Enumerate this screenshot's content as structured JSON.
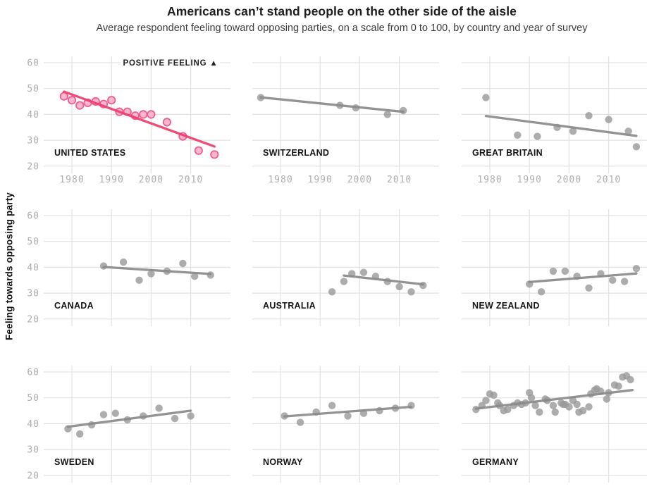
{
  "header": {
    "title": "Americans can’t stand people on the other side of the aisle",
    "subtitle": "Average respondent feeling toward opposing parties, on a scale from 0 to 100, by country and year of survey"
  },
  "y_axis_label": "Feeling towards opposing party",
  "annotation": {
    "text": "POSITIVE FEELING",
    "symbol": "▲"
  },
  "colors": {
    "highlight_line": "#ee3d6d",
    "highlight_dot_fill": "#f9b6ce",
    "highlight_dot_stroke": "#ee5d90",
    "gray_line": "#8a8a8a",
    "gray_dot": "#999999",
    "gridline": "#e2e2e2",
    "tick_label": "#aeaeae",
    "country_label": "#151515",
    "annotation_color": "#222222"
  },
  "chart_data": {
    "type": "scatter",
    "title": "Americans can’t stand people on the other side of the aisle",
    "subtitle": "Average respondent feeling toward opposing parties, on a scale from 0 to 100, by country and year of survey",
    "ylabel": "Feeling towards opposing party",
    "axes": {
      "y_ticks": [
        60,
        50,
        40,
        30,
        20
      ],
      "x_ticks": [
        1980,
        1990,
        2000,
        2010
      ],
      "ylim_shown": [
        20,
        60
      ],
      "xlim_shown": [
        1973,
        2020
      ],
      "grid": true,
      "x_tick_labels_only_on_top_row": true,
      "y_tick_labels_only_on_left_column": true
    },
    "panels": [
      {
        "id": "united-states",
        "label": "UNITED STATES",
        "highlighted": true,
        "points": [
          [
            1978,
            47
          ],
          [
            1980,
            45.5
          ],
          [
            1982,
            43.5
          ],
          [
            1984,
            44.5
          ],
          [
            1986,
            45
          ],
          [
            1988,
            44
          ],
          [
            1990,
            45.5
          ],
          [
            1992,
            41
          ],
          [
            1994,
            41
          ],
          [
            1996,
            39.5
          ],
          [
            1998,
            40
          ],
          [
            2000,
            40
          ],
          [
            2004,
            37
          ],
          [
            2008,
            31.5
          ],
          [
            2012,
            26
          ],
          [
            2016,
            24.5
          ]
        ],
        "trend": [
          [
            1978,
            48.8
          ],
          [
            2016,
            27.6
          ]
        ]
      },
      {
        "id": "switzerland",
        "label": "SWITZERLAND",
        "highlighted": false,
        "points": [
          [
            1975,
            46.5
          ],
          [
            1995,
            43.5
          ],
          [
            1999,
            42.5
          ],
          [
            2007,
            40
          ],
          [
            2011,
            41.5
          ]
        ],
        "trend": [
          [
            1975,
            46.6
          ],
          [
            2011,
            41
          ]
        ]
      },
      {
        "id": "great-britain",
        "label": "GREAT BRITAIN",
        "highlighted": false,
        "points": [
          [
            1979,
            46.5
          ],
          [
            1987,
            32
          ],
          [
            1992,
            31.5
          ],
          [
            1997,
            35
          ],
          [
            2001,
            33.5
          ],
          [
            2005,
            39.5
          ],
          [
            2010,
            38
          ],
          [
            2015,
            33.5
          ],
          [
            2017,
            27.5
          ]
        ],
        "trend": [
          [
            1979,
            39.4
          ],
          [
            2017,
            31.7
          ]
        ]
      },
      {
        "id": "canada",
        "label": "CANADA",
        "highlighted": false,
        "points": [
          [
            1988,
            40.5
          ],
          [
            1993,
            42
          ],
          [
            1997,
            35
          ],
          [
            2000,
            37.5
          ],
          [
            2004,
            38.5
          ],
          [
            2008,
            41.5
          ],
          [
            2011,
            36.5
          ],
          [
            2015,
            37
          ]
        ],
        "trend": [
          [
            1988,
            40.1
          ],
          [
            2015,
            37.4
          ]
        ]
      },
      {
        "id": "australia",
        "label": "AUSTRALIA",
        "highlighted": false,
        "points": [
          [
            1993,
            30.5
          ],
          [
            1996,
            34.5
          ],
          [
            1998,
            37.5
          ],
          [
            2001,
            38
          ],
          [
            2004,
            36.5
          ],
          [
            2007,
            34.5
          ],
          [
            2010,
            32.5
          ],
          [
            2013,
            30.5
          ],
          [
            2016,
            33
          ]
        ],
        "trend": [
          [
            1996,
            36.8
          ],
          [
            2016,
            33.4
          ]
        ]
      },
      {
        "id": "new-zealand",
        "label": "NEW ZEALAND",
        "highlighted": false,
        "points": [
          [
            1990,
            33.5
          ],
          [
            1993,
            30.5
          ],
          [
            1996,
            38.5
          ],
          [
            1999,
            38.5
          ],
          [
            2002,
            36.5
          ],
          [
            2005,
            32
          ],
          [
            2008,
            37.5
          ],
          [
            2011,
            35
          ],
          [
            2014,
            34.5
          ],
          [
            2017,
            39.5
          ]
        ],
        "trend": [
          [
            1990,
            34.3
          ],
          [
            2017,
            37.6
          ]
        ]
      },
      {
        "id": "sweden",
        "label": "SWEDEN",
        "highlighted": false,
        "points": [
          [
            1979,
            38
          ],
          [
            1982,
            36
          ],
          [
            1985,
            39.5
          ],
          [
            1988,
            43.5
          ],
          [
            1991,
            44
          ],
          [
            1994,
            41.5
          ],
          [
            1998,
            43
          ],
          [
            2002,
            46
          ],
          [
            2006,
            42
          ],
          [
            2010,
            43
          ]
        ],
        "trend": [
          [
            1979,
            38.8
          ],
          [
            2010,
            45
          ]
        ]
      },
      {
        "id": "norway",
        "label": "NORWAY",
        "highlighted": false,
        "points": [
          [
            1981,
            43
          ],
          [
            1985,
            40.5
          ],
          [
            1989,
            44.5
          ],
          [
            1993,
            47
          ],
          [
            1997,
            43
          ],
          [
            2001,
            44
          ],
          [
            2005,
            45
          ],
          [
            2009,
            46
          ],
          [
            2013,
            47
          ]
        ],
        "trend": [
          [
            1981,
            42.8
          ],
          [
            2013,
            46.5
          ]
        ]
      },
      {
        "id": "germany",
        "label": "GERMANY",
        "highlighted": false,
        "points": [
          [
            1976.5,
            45.5
          ],
          [
            1978,
            47
          ],
          [
            1979,
            49
          ],
          [
            1980,
            51.5
          ],
          [
            1981,
            51
          ],
          [
            1982,
            48
          ],
          [
            1982.5,
            47
          ],
          [
            1983.5,
            45
          ],
          [
            1984.5,
            45.5
          ],
          [
            1986,
            47
          ],
          [
            1987,
            48
          ],
          [
            1988,
            47.5
          ],
          [
            1989,
            48
          ],
          [
            1990,
            52
          ],
          [
            1990.5,
            50
          ],
          [
            1991.5,
            47
          ],
          [
            1992.5,
            44.5
          ],
          [
            1994,
            49.5
          ],
          [
            1994.5,
            49
          ],
          [
            1996,
            47
          ],
          [
            1996.5,
            44.5
          ],
          [
            1998,
            48
          ],
          [
            1998.5,
            47.5
          ],
          [
            1999,
            47.5
          ],
          [
            2000,
            46.5
          ],
          [
            2001,
            49
          ],
          [
            2002,
            47.5
          ],
          [
            2002.5,
            44.5
          ],
          [
            2003.5,
            45
          ],
          [
            2005,
            46.5
          ],
          [
            2005.5,
            51.5
          ],
          [
            2006.5,
            53
          ],
          [
            2007,
            53.5
          ],
          [
            2008,
            52.5
          ],
          [
            2009.5,
            49.5
          ],
          [
            2010,
            52
          ],
          [
            2011.5,
            55
          ],
          [
            2012.5,
            54.5
          ],
          [
            2013.5,
            58
          ],
          [
            2014.5,
            58.5
          ],
          [
            2015.5,
            57
          ]
        ],
        "trend": [
          [
            1976.5,
            45.8
          ],
          [
            2016,
            53
          ]
        ]
      }
    ]
  }
}
